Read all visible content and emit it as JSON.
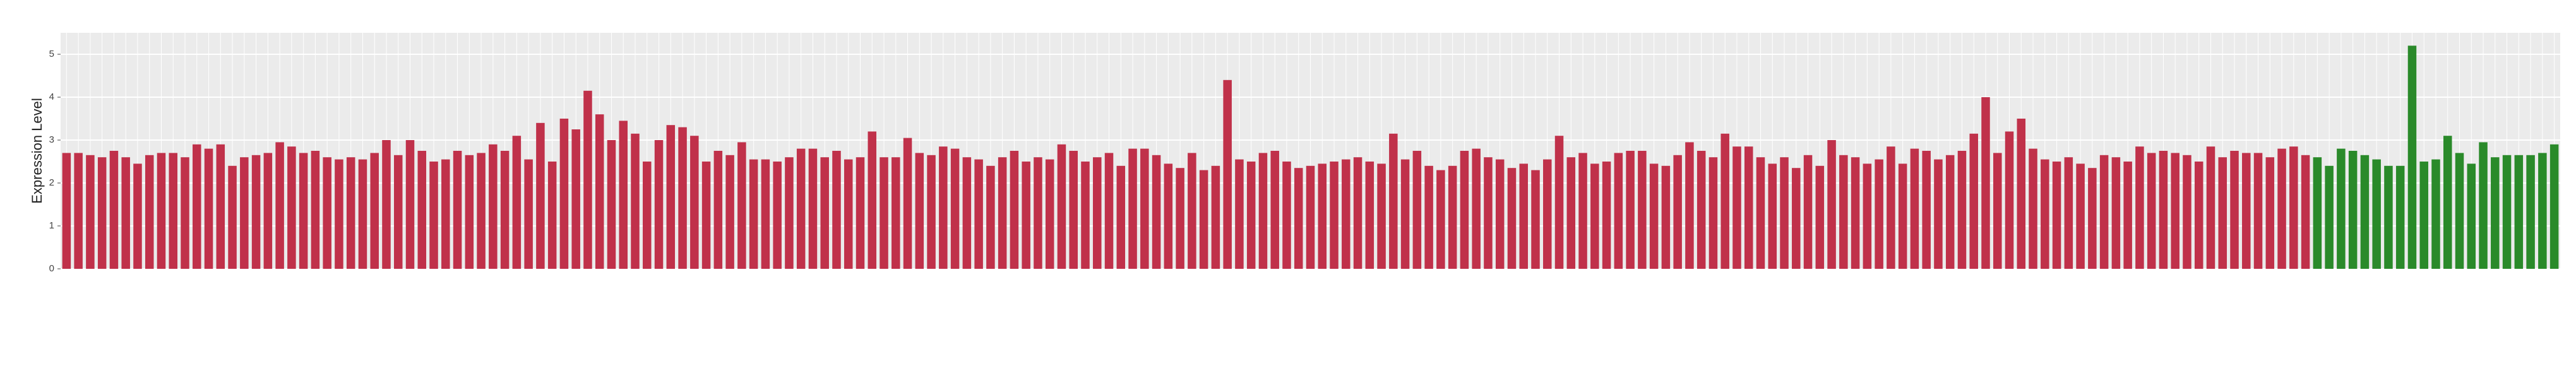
{
  "chart_data": {
    "type": "bar",
    "y_label": "Expression Level",
    "categories": [
      null,
      null,
      null,
      null,
      null,
      null,
      null,
      null,
      null,
      null,
      null,
      null,
      null,
      null,
      null,
      null,
      null,
      null,
      null,
      null,
      null,
      null,
      null,
      null,
      null,
      null,
      null,
      null,
      null,
      null,
      null,
      null,
      null,
      null,
      null,
      null,
      null,
      null,
      null,
      null,
      null,
      null,
      null,
      null,
      null,
      null,
      null,
      null,
      null,
      null,
      null,
      null,
      null,
      null,
      null,
      null,
      null,
      null,
      null,
      null,
      null,
      null,
      null,
      null,
      null,
      null,
      null,
      null,
      null,
      null,
      null,
      null,
      null,
      null,
      null,
      null,
      null,
      null,
      null,
      null,
      null,
      null,
      null,
      null,
      null,
      null,
      null,
      null,
      null,
      null,
      null,
      null,
      null,
      null,
      null,
      null,
      null,
      null,
      null,
      null,
      null,
      null,
      null,
      null,
      null,
      null,
      null,
      null,
      null,
      null,
      null,
      null,
      null,
      null,
      null,
      null,
      null,
      null,
      null,
      null,
      null,
      null,
      null,
      null,
      null,
      null,
      null,
      null,
      null,
      null,
      null,
      null,
      null,
      null,
      null,
      null,
      null,
      null,
      null,
      null,
      null,
      null,
      null,
      null,
      null,
      null,
      null,
      null,
      null,
      null,
      null,
      null,
      null,
      null,
      null,
      null,
      null,
      null,
      null,
      null,
      null,
      null,
      null,
      null,
      null,
      null,
      null,
      null,
      null,
      null,
      null,
      null,
      null,
      null,
      null,
      null,
      null,
      null,
      null,
      null,
      null,
      null,
      null,
      null,
      null,
      null,
      null,
      null,
      null,
      null,
      null,
      null,
      null,
      null,
      null,
      null,
      null,
      null,
      null,
      null,
      null,
      null,
      null,
      null,
      null,
      null,
      null,
      null,
      null,
      null,
      null
    ],
    "values": [
      2.7,
      2.7,
      2.65,
      2.6,
      2.75,
      2.6,
      2.45,
      2.65,
      2.7,
      2.7,
      2.6,
      2.9,
      2.8,
      2.9,
      2.4,
      2.6,
      2.65,
      2.7,
      2.95,
      2.85,
      2.7,
      2.75,
      2.6,
      2.55,
      2.6,
      2.55,
      2.7,
      3.0,
      2.65,
      3.0,
      2.75,
      2.5,
      2.55,
      2.75,
      2.65,
      2.7,
      2.9,
      2.75,
      3.1,
      2.55,
      3.4,
      2.5,
      3.5,
      3.25,
      4.15,
      3.6,
      3.0,
      3.45,
      3.15,
      2.5,
      3.0,
      3.35,
      3.3,
      3.1,
      2.5,
      2.75,
      2.65,
      2.95,
      2.55,
      2.55,
      2.5,
      2.6,
      2.8,
      2.8,
      2.6,
      2.75,
      2.55,
      2.6,
      3.2,
      2.6,
      2.6,
      3.05,
      2.7,
      2.65,
      2.85,
      2.8,
      2.6,
      2.55,
      2.4,
      2.6,
      2.75,
      2.5,
      2.6,
      2.55,
      2.9,
      2.75,
      2.5,
      2.6,
      2.7,
      2.4,
      2.8,
      2.8,
      2.65,
      2.45,
      2.35,
      2.7,
      2.3,
      2.4,
      4.4,
      2.55,
      2.5,
      2.7,
      2.75,
      2.5,
      2.35,
      2.4,
      2.45,
      2.5,
      2.55,
      2.6,
      2.5,
      2.45,
      3.15,
      2.55,
      2.75,
      2.4,
      2.3,
      2.4,
      2.75,
      2.8,
      2.6,
      2.55,
      2.35,
      2.45,
      2.3,
      2.55,
      3.1,
      2.6,
      2.7,
      2.45,
      2.5,
      2.7,
      2.75,
      2.75,
      2.45,
      2.4,
      2.65,
      2.95,
      2.75,
      2.6,
      3.15,
      2.85,
      2.85,
      2.6,
      2.45,
      2.6,
      2.35,
      2.65,
      2.4,
      3.0,
      2.65,
      2.6,
      2.45,
      2.55,
      2.85,
      2.45,
      2.8,
      2.75,
      2.55,
      2.65,
      2.75,
      3.15,
      4.0,
      2.7,
      3.2,
      3.5,
      2.8,
      2.55,
      2.5,
      2.6,
      2.45,
      2.35,
      2.65,
      2.6,
      2.5,
      2.85,
      2.7,
      2.75,
      2.7,
      2.65,
      2.5,
      2.85,
      2.6,
      2.75,
      2.7,
      2.7,
      2.6,
      2.8,
      2.85,
      2.65,
      2.6,
      2.4,
      2.8,
      2.75,
      2.65,
      2.55,
      2.4,
      2.4,
      5.2,
      2.5,
      2.55,
      3.1,
      2.7,
      2.45,
      2.95,
      2.6,
      2.65,
      2.65,
      2.65,
      2.7,
      2.9
    ],
    "colors": [
      "#c0314a",
      "#c0314a",
      "#c0314a",
      "#c0314a",
      "#c0314a",
      "#c0314a",
      "#c0314a",
      "#c0314a",
      "#c0314a",
      "#c0314a",
      "#c0314a",
      "#c0314a",
      "#c0314a",
      "#c0314a",
      "#c0314a",
      "#c0314a",
      "#c0314a",
      "#c0314a",
      "#c0314a",
      "#c0314a",
      "#c0314a",
      "#c0314a",
      "#c0314a",
      "#c0314a",
      "#c0314a",
      "#c0314a",
      "#c0314a",
      "#c0314a",
      "#c0314a",
      "#c0314a",
      "#c0314a",
      "#c0314a",
      "#c0314a",
      "#c0314a",
      "#c0314a",
      "#c0314a",
      "#c0314a",
      "#c0314a",
      "#c0314a",
      "#c0314a",
      "#c0314a",
      "#c0314a",
      "#c0314a",
      "#c0314a",
      "#c0314a",
      "#c0314a",
      "#c0314a",
      "#c0314a",
      "#c0314a",
      "#c0314a",
      "#c0314a",
      "#c0314a",
      "#c0314a",
      "#c0314a",
      "#c0314a",
      "#c0314a",
      "#c0314a",
      "#c0314a",
      "#c0314a",
      "#c0314a",
      "#c0314a",
      "#c0314a",
      "#c0314a",
      "#c0314a",
      "#c0314a",
      "#c0314a",
      "#c0314a",
      "#c0314a",
      "#c0314a",
      "#c0314a",
      "#c0314a",
      "#c0314a",
      "#c0314a",
      "#c0314a",
      "#c0314a",
      "#c0314a",
      "#c0314a",
      "#c0314a",
      "#c0314a",
      "#c0314a",
      "#c0314a",
      "#c0314a",
      "#c0314a",
      "#c0314a",
      "#c0314a",
      "#c0314a",
      "#c0314a",
      "#c0314a",
      "#c0314a",
      "#c0314a",
      "#c0314a",
      "#c0314a",
      "#c0314a",
      "#c0314a",
      "#c0314a",
      "#c0314a",
      "#c0314a",
      "#c0314a",
      "#c0314a",
      "#c0314a",
      "#c0314a",
      "#c0314a",
      "#c0314a",
      "#c0314a",
      "#c0314a",
      "#c0314a",
      "#c0314a",
      "#c0314a",
      "#c0314a",
      "#c0314a",
      "#c0314a",
      "#c0314a",
      "#c0314a",
      "#c0314a",
      "#c0314a",
      "#c0314a",
      "#c0314a",
      "#c0314a",
      "#c0314a",
      "#c0314a",
      "#c0314a",
      "#c0314a",
      "#c0314a",
      "#c0314a",
      "#c0314a",
      "#c0314a",
      "#c0314a",
      "#c0314a",
      "#c0314a",
      "#c0314a",
      "#c0314a",
      "#c0314a",
      "#c0314a",
      "#c0314a",
      "#c0314a",
      "#c0314a",
      "#c0314a",
      "#c0314a",
      "#c0314a",
      "#c0314a",
      "#c0314a",
      "#c0314a",
      "#c0314a",
      "#c0314a",
      "#c0314a",
      "#c0314a",
      "#c0314a",
      "#c0314a",
      "#c0314a",
      "#c0314a",
      "#c0314a",
      "#c0314a",
      "#c0314a",
      "#c0314a",
      "#c0314a",
      "#c0314a",
      "#c0314a",
      "#c0314a",
      "#c0314a",
      "#c0314a",
      "#c0314a",
      "#c0314a",
      "#c0314a",
      "#c0314a",
      "#c0314a",
      "#c0314a",
      "#c0314a",
      "#c0314a",
      "#c0314a",
      "#c0314a",
      "#c0314a",
      "#c0314a",
      "#c0314a",
      "#c0314a",
      "#c0314a",
      "#c0314a",
      "#c0314a",
      "#c0314a",
      "#c0314a",
      "#c0314a",
      "#c0314a",
      "#c0314a",
      "#c0314a",
      "#c0314a",
      "#c0314a",
      "#c0314a",
      "#c0314a",
      "#c0314a",
      "#c0314a",
      "#c0314a",
      "#2a8a2a",
      "#2a8a2a",
      "#2a8a2a",
      "#2a8a2a",
      "#2a8a2a",
      "#2a8a2a",
      "#2a8a2a",
      "#2a8a2a",
      "#2a8a2a",
      "#2a8a2a",
      "#2a8a2a",
      "#2a8a2a",
      "#2a8a2a",
      "#2a8a2a",
      "#2a8a2a",
      "#2a8a2a",
      "#2a8a2a",
      "#2a8a2a",
      "#2a8a2a",
      "#2a8a2a",
      "#2a8a2a"
    ],
    "ylim": [
      0,
      5.5
    ],
    "yticks": [
      0,
      1,
      2,
      3,
      4,
      5
    ],
    "grid": true
  }
}
